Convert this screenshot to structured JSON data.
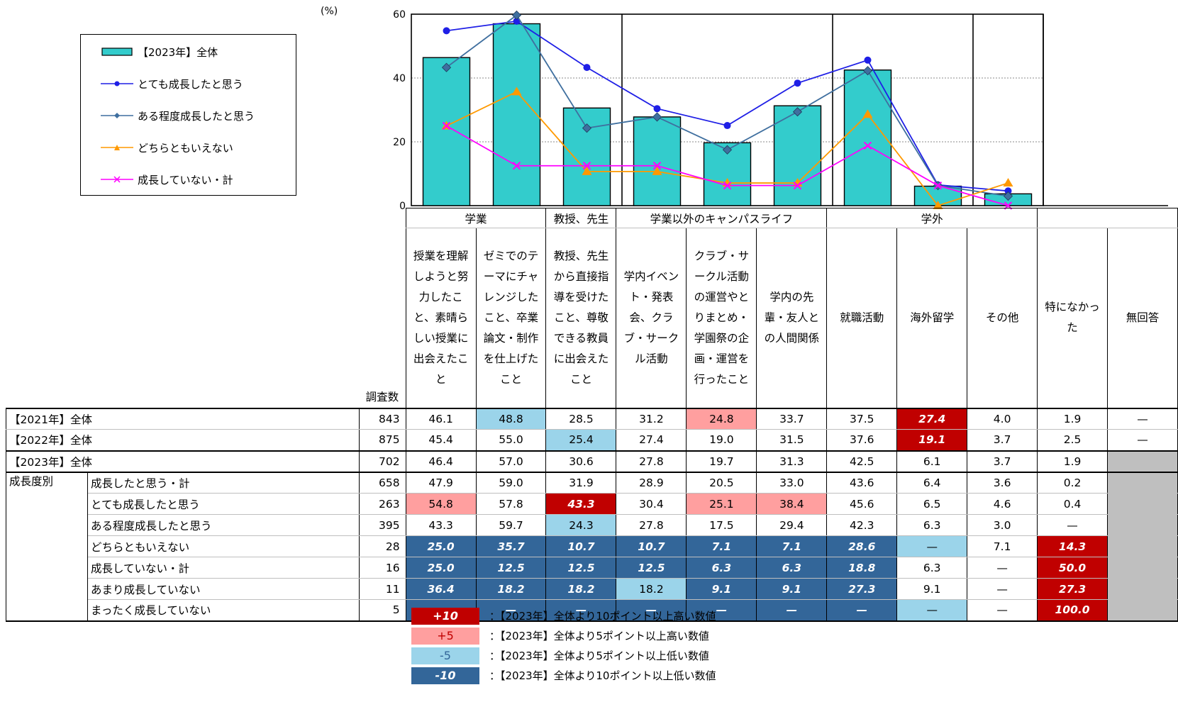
{
  "chart_data": {
    "type": "bar+line",
    "unit_label": "(%)",
    "ylim": [
      0,
      60
    ],
    "yticks": [
      0,
      20,
      40,
      60
    ],
    "groups": [
      "学業",
      "教授、先生",
      "学業以外のキャンパスライフ",
      "学外"
    ],
    "categories": [
      "授業を理解しようと努力したこと、素晴らしい授業に出会えたこと",
      "ゼミでのテーマにチャレンジしたこと、卒業論文・制作を仕上げたこと",
      "教授、先生から直接指導を受けたこと、尊敬できる教員に出会えたこと",
      "学内イベント・発表会、クラブ・サークル活動",
      "クラブ・サークル活動の運営やとりまとめ・学園祭の企画・運営を行ったこと",
      "学内の先輩・友人との人間関係",
      "就職活動",
      "海外留学",
      "その他",
      "特になかった",
      "無回答"
    ],
    "bar_series": {
      "name": "【2023年】全体",
      "values": [
        46.4,
        57.0,
        30.6,
        27.8,
        19.7,
        31.3,
        42.5,
        6.1,
        3.7
      ]
    },
    "line_series": [
      {
        "name": "とても成長したと思う",
        "values": [
          54.8,
          57.8,
          43.3,
          30.4,
          25.1,
          38.4,
          45.6,
          6.5,
          4.6
        ]
      },
      {
        "name": "ある程度成長したと思う",
        "values": [
          43.3,
          59.7,
          24.3,
          27.8,
          17.5,
          29.4,
          42.3,
          6.3,
          3.0
        ]
      },
      {
        "name": "どちらともいえない",
        "values": [
          25.0,
          35.7,
          10.7,
          10.7,
          7.1,
          7.1,
          28.6,
          0,
          7.1
        ]
      },
      {
        "name": "成長していない・計",
        "values": [
          25.0,
          12.5,
          12.5,
          12.5,
          6.3,
          6.3,
          18.8,
          6.3,
          0
        ]
      }
    ],
    "legend_position": "top-left",
    "colors": {
      "bar": "#33cccc",
      "s1": "#1f1fe6",
      "s2": "#3f6f9f",
      "s3": "#ff9900",
      "s4": "#ff00ff"
    }
  },
  "table": {
    "n_header": "調査数",
    "section_label": "成長度別",
    "rows": [
      {
        "label": "【2021年】全体",
        "sub": "",
        "n": "843",
        "cells": [
          "46.1",
          "48.8",
          "28.5",
          "31.2",
          "24.8",
          "33.7",
          "37.5",
          "27.4",
          "4.0",
          "1.9",
          "—"
        ],
        "marks": [
          "",
          "lo5",
          "",
          "",
          "hi5",
          "",
          "",
          "hi10",
          "",
          "",
          ""
        ]
      },
      {
        "label": "【2022年】全体",
        "sub": "",
        "n": "875",
        "cells": [
          "45.4",
          "55.0",
          "25.4",
          "27.4",
          "19.0",
          "31.5",
          "37.6",
          "19.1",
          "3.7",
          "2.5",
          "—"
        ],
        "marks": [
          "",
          "",
          "lo5",
          "",
          "",
          "",
          "",
          "hi10",
          "",
          "",
          ""
        ]
      },
      {
        "label": "【2023年】全体",
        "sub": "",
        "n": "702",
        "cells": [
          "46.4",
          "57.0",
          "30.6",
          "27.8",
          "19.7",
          "31.3",
          "42.5",
          "6.1",
          "3.7",
          "1.9",
          ""
        ],
        "marks": [
          "",
          "",
          "",
          "",
          "",
          "",
          "",
          "",
          "",
          "",
          "grey"
        ]
      },
      {
        "label": "",
        "sub": "成長したと思う・計",
        "n": "658",
        "cells": [
          "47.9",
          "59.0",
          "31.9",
          "28.9",
          "20.5",
          "33.0",
          "43.6",
          "6.4",
          "3.6",
          "0.2",
          ""
        ],
        "marks": [
          "",
          "",
          "",
          "",
          "",
          "",
          "",
          "",
          "",
          "",
          "grey"
        ]
      },
      {
        "label": "",
        "sub": "とても成長したと思う",
        "n": "263",
        "cells": [
          "54.8",
          "57.8",
          "43.3",
          "30.4",
          "25.1",
          "38.4",
          "45.6",
          "6.5",
          "4.6",
          "0.4",
          ""
        ],
        "marks": [
          "hi5",
          "",
          "hi10",
          "",
          "hi5",
          "hi5",
          "",
          "",
          "",
          "",
          "grey"
        ]
      },
      {
        "label": "",
        "sub": "ある程度成長したと思う",
        "n": "395",
        "cells": [
          "43.3",
          "59.7",
          "24.3",
          "27.8",
          "17.5",
          "29.4",
          "42.3",
          "6.3",
          "3.0",
          "—",
          ""
        ],
        "marks": [
          "",
          "",
          "lo5",
          "",
          "",
          "",
          "",
          "",
          "",
          "",
          "grey"
        ]
      },
      {
        "label": "",
        "sub": "どちらともいえない",
        "n": "28",
        "cells": [
          "25.0",
          "35.7",
          "10.7",
          "10.7",
          "7.1",
          "7.1",
          "28.6",
          "—",
          "7.1",
          "14.3",
          ""
        ],
        "marks": [
          "lo10",
          "lo10",
          "lo10",
          "lo10",
          "lo10",
          "lo10",
          "lo10",
          "lo5",
          "",
          "hi10",
          "grey"
        ]
      },
      {
        "label": "",
        "sub": "成長していない・計",
        "n": "16",
        "cells": [
          "25.0",
          "12.5",
          "12.5",
          "12.5",
          "6.3",
          "6.3",
          "18.8",
          "6.3",
          "—",
          "50.0",
          ""
        ],
        "marks": [
          "lo10",
          "lo10",
          "lo10",
          "lo10",
          "lo10",
          "lo10",
          "lo10",
          "",
          "",
          "hi10",
          "grey"
        ]
      },
      {
        "label": "",
        "sub": "あまり成長していない",
        "n": "11",
        "cells": [
          "36.4",
          "18.2",
          "18.2",
          "18.2",
          "9.1",
          "9.1",
          "27.3",
          "9.1",
          "—",
          "27.3",
          ""
        ],
        "marks": [
          "lo10",
          "lo10",
          "lo10",
          "lo5",
          "lo10",
          "lo10",
          "lo10",
          "",
          "",
          "hi10",
          "grey"
        ]
      },
      {
        "label": "",
        "sub": "まったく成長していない",
        "n": "5",
        "cells": [
          "—",
          "—",
          "—",
          "—",
          "—",
          "—",
          "—",
          "—",
          "—",
          "100.0",
          ""
        ],
        "marks": [
          "lo10",
          "lo10",
          "lo10",
          "lo10",
          "lo10",
          "lo10",
          "lo10",
          "lo5",
          "",
          "hi10",
          "grey"
        ]
      }
    ],
    "header_labels": [
      "授業を理解しようと努力したこと、素晴らしい授業に出会えたこと",
      "ゼミでのテーマにチャレンジしたこと、卒業論文・制作を仕上げたこと",
      "教授、先生から直接指導を受けたこと、尊敬できる教員に出会えたこと",
      "学内イベント・発表会、クラブ・サークル活動",
      "クラブ・サークル活動の運営やとりまとめ・学園祭の企画・運営を行ったこと",
      "学内の先輩・友人との人間関係",
      "就職活動",
      "海外留学",
      "その他",
      "特になかった",
      "無回答"
    ]
  },
  "key": [
    {
      "symbol": "+10",
      "text": "：【2023年】全体より10ポイント以上高い数値",
      "color": "#c00000"
    },
    {
      "symbol": "+5",
      "text": "：【2023年】全体より5ポイント以上高い数値",
      "color": "#ff9f9f"
    },
    {
      "symbol": "-5",
      "text": "：【2023年】全体より5ポイント以上低い数値",
      "color": "#9bd4ea"
    },
    {
      "symbol": "-10",
      "text": "：【2023年】全体より10ポイント以上低い数値",
      "color": "#336699"
    }
  ]
}
